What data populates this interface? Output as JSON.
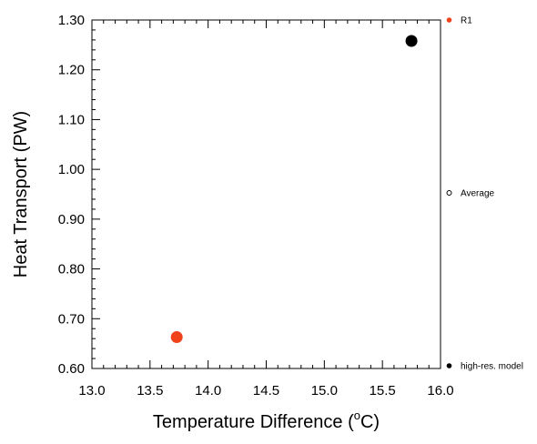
{
  "chart_data": {
    "type": "scatter",
    "title": "",
    "xlabel": "Temperature Difference (",
    "xlabel_sup": "o",
    "xlabel_tail": "C)",
    "ylabel": "Heat Transport (PW)",
    "xlim": [
      13.0,
      16.0
    ],
    "ylim": [
      0.6,
      1.3
    ],
    "xticks": [
      "13.0",
      "13.5",
      "14.0",
      "14.5",
      "15.0",
      "15.5",
      "16.0"
    ],
    "yticks": [
      "0.60",
      "0.70",
      "0.80",
      "0.90",
      "1.00",
      "1.10",
      "1.20",
      "1.30"
    ],
    "grid": false,
    "legend_placement": "right",
    "series": [
      {
        "name": "R1",
        "color": "#f0431c",
        "marker": "filled-circle",
        "points": [
          {
            "x": 13.73,
            "y": 0.663
          }
        ]
      },
      {
        "name": "high-res. model",
        "color": "#000000",
        "marker": "filled-circle",
        "points": [
          {
            "x": 15.75,
            "y": 1.258
          }
        ]
      }
    ],
    "legend": [
      {
        "label": "R1",
        "color": "#f0431c",
        "marker": "filled-circle"
      },
      {
        "label": "Average",
        "color": "#000000",
        "marker": "open-circle"
      },
      {
        "label": "high-res. model",
        "color": "#000000",
        "marker": "filled-circle"
      }
    ]
  }
}
